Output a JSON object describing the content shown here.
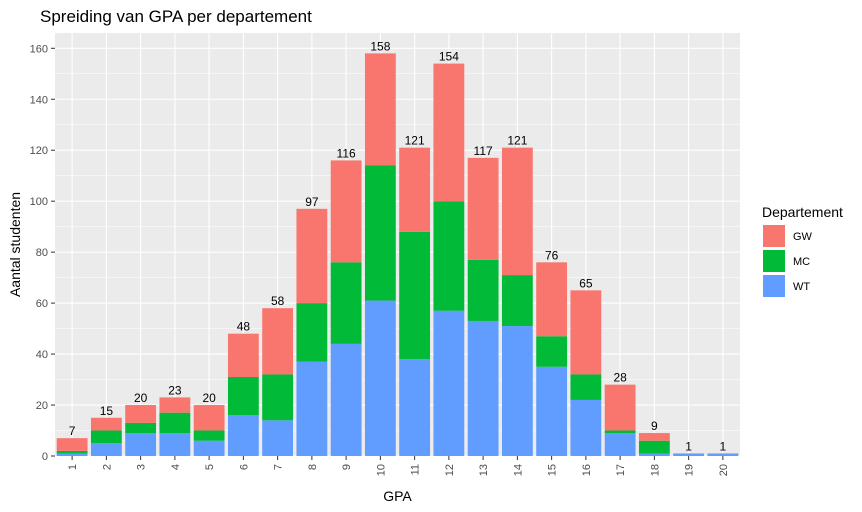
{
  "chart_data": {
    "type": "bar",
    "stacked": true,
    "title": "Spreiding van GPA per departement",
    "xlabel": "GPA",
    "ylabel": "Aantal studenten",
    "categories": [
      "1",
      "2",
      "3",
      "4",
      "5",
      "6",
      "7",
      "8",
      "9",
      "10",
      "11",
      "12",
      "13",
      "14",
      "15",
      "16",
      "17",
      "18",
      "19",
      "20"
    ],
    "ylim": [
      0,
      166
    ],
    "yticks": [
      0,
      20,
      40,
      60,
      80,
      100,
      120,
      140,
      160
    ],
    "grid": true,
    "legend": {
      "title": "Departement",
      "position": "right"
    },
    "series": [
      {
        "name": "WT",
        "color": "#619CFF",
        "values": [
          1,
          5,
          9,
          9,
          6,
          16,
          14,
          37,
          44,
          61,
          38,
          57,
          53,
          51,
          35,
          22,
          9,
          1,
          1,
          1
        ]
      },
      {
        "name": "MC",
        "color": "#00BA38",
        "values": [
          1,
          5,
          4,
          8,
          4,
          15,
          18,
          23,
          32,
          53,
          50,
          43,
          24,
          20,
          12,
          10,
          1,
          5,
          0,
          0
        ]
      },
      {
        "name": "GW",
        "color": "#F8766D",
        "values": [
          5,
          5,
          7,
          6,
          10,
          17,
          26,
          37,
          40,
          44,
          33,
          54,
          40,
          50,
          29,
          33,
          18,
          3,
          0,
          0
        ]
      }
    ],
    "totals": [
      7,
      15,
      20,
      23,
      20,
      48,
      58,
      97,
      116,
      158,
      121,
      154,
      117,
      121,
      76,
      65,
      28,
      9,
      1,
      1
    ],
    "legend_order": [
      "GW",
      "MC",
      "WT"
    ]
  }
}
